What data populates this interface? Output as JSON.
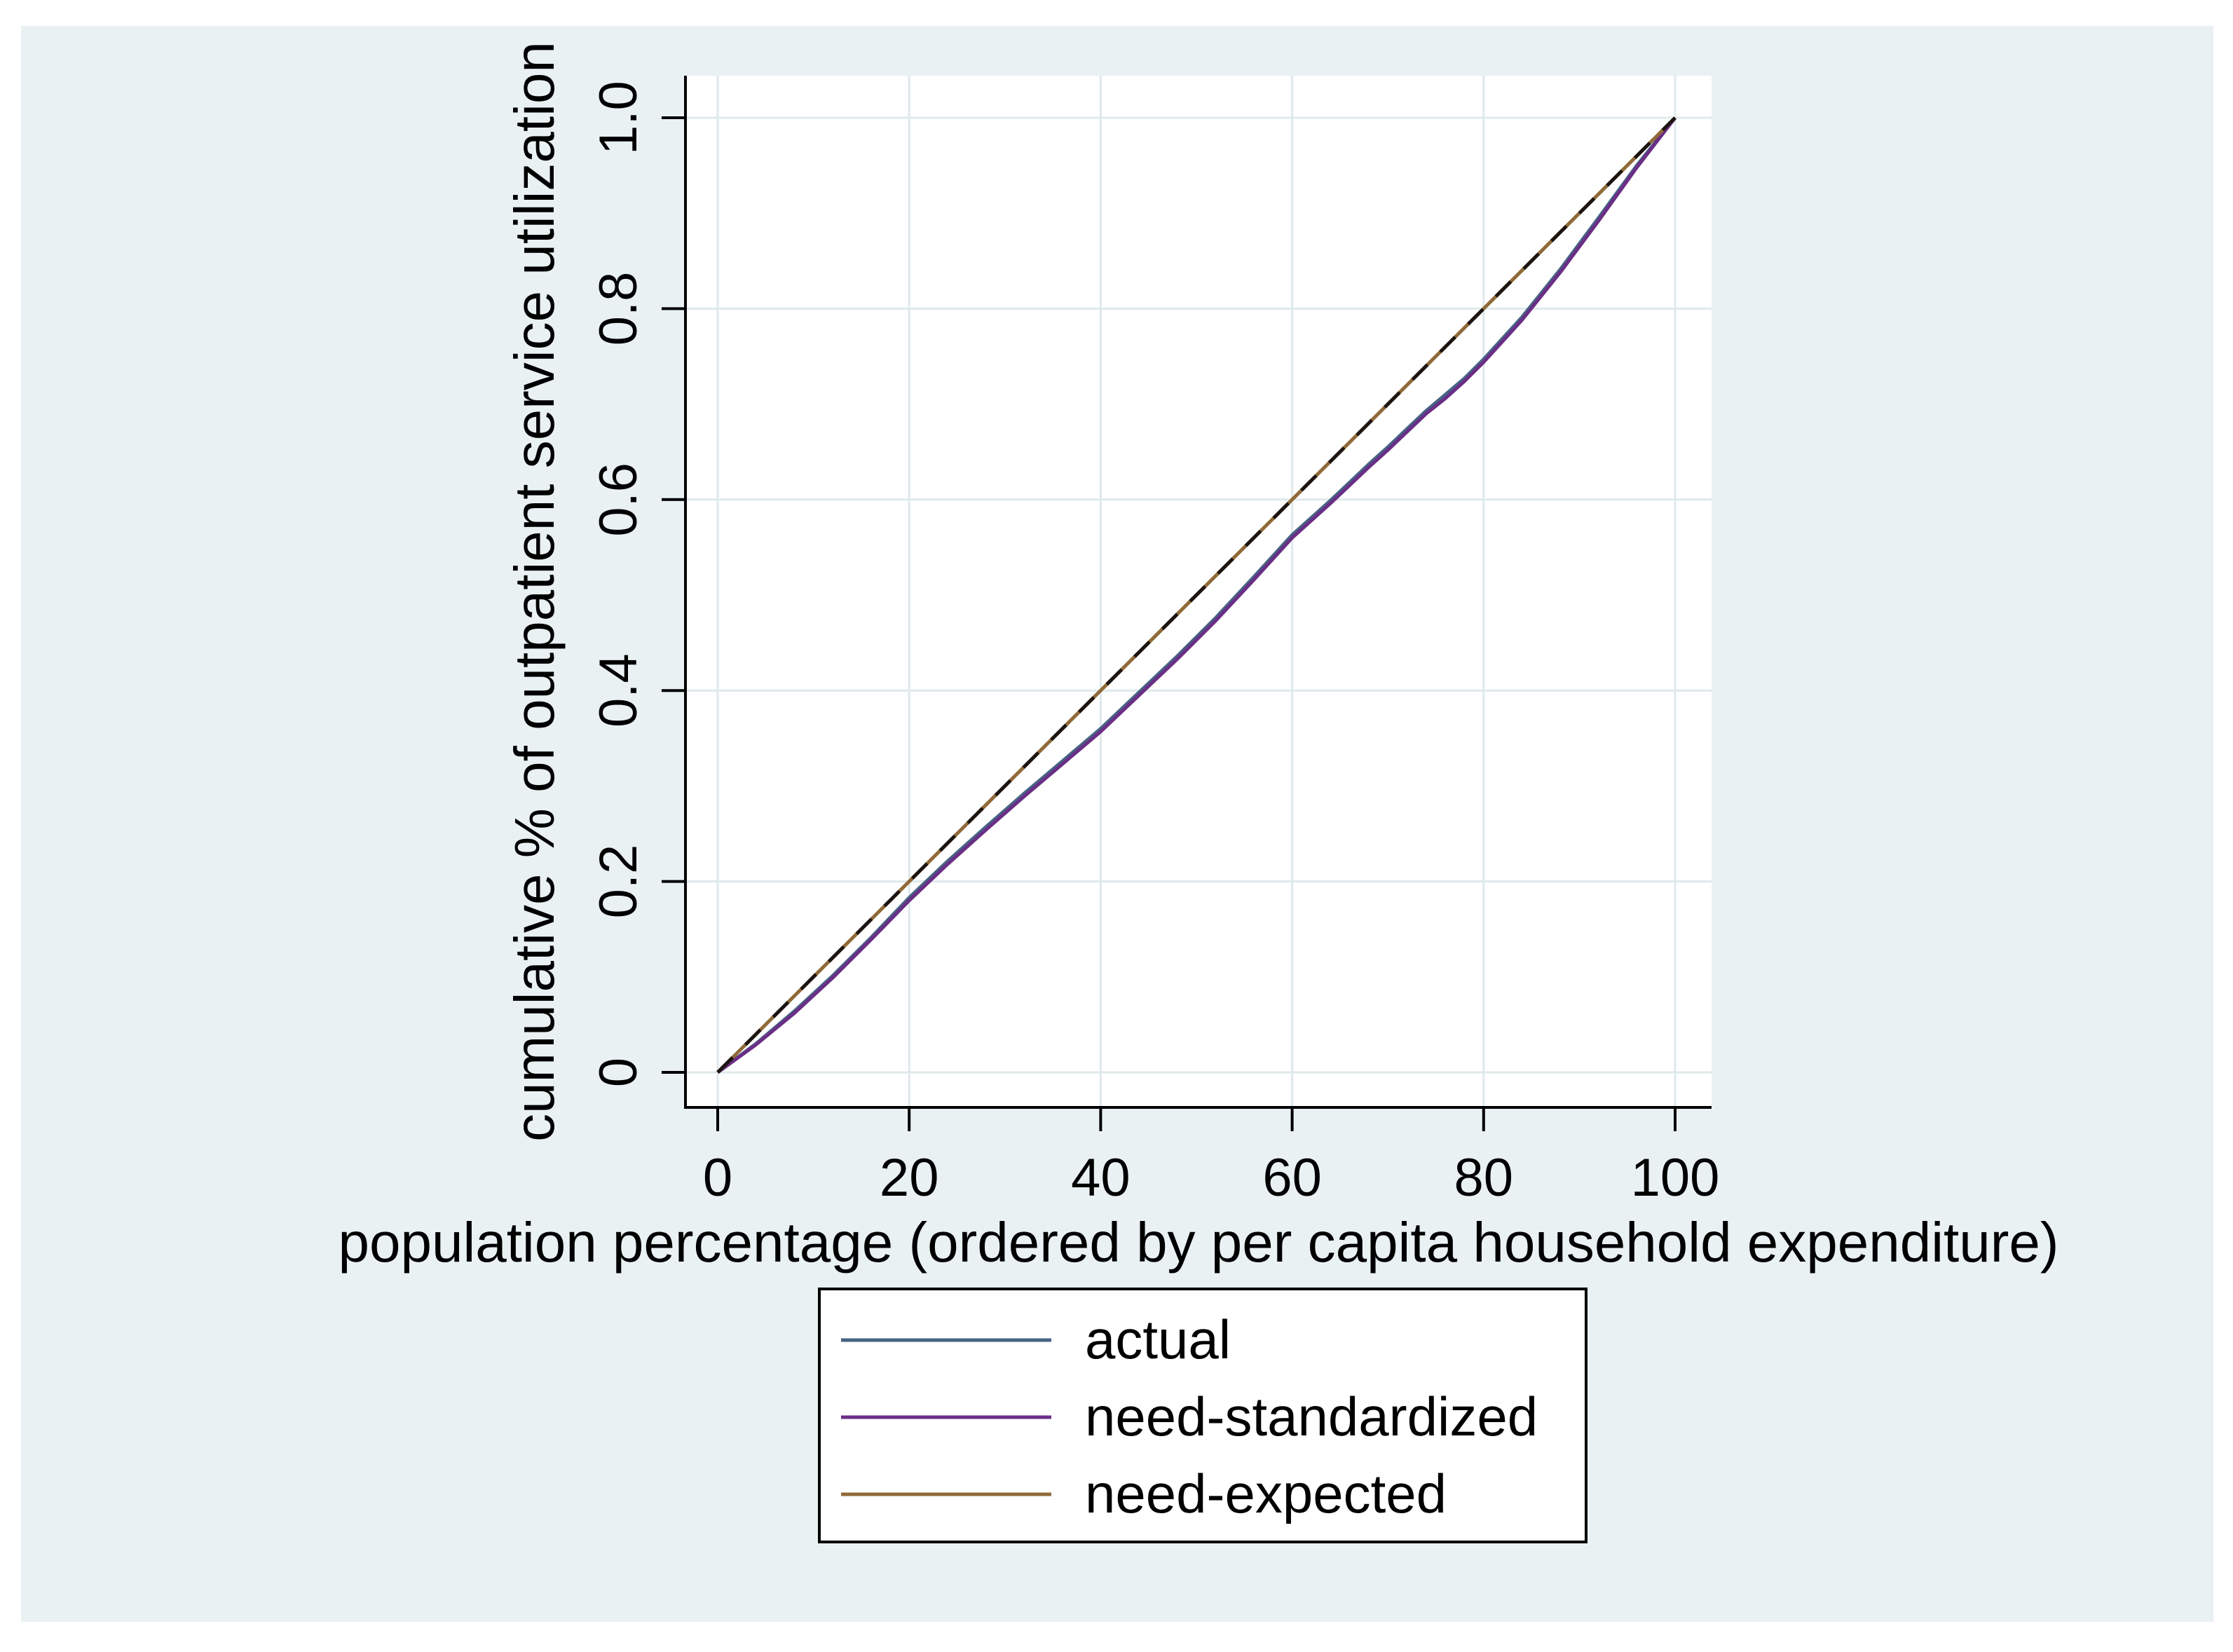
{
  "figure": {
    "page_background": "#ffffff",
    "graph_background": "#eaf1f3",
    "plot_background": "#ffffff",
    "grid_color": "#dfe9ec",
    "axis_color": "#000000"
  },
  "chart_data": {
    "type": "line",
    "title": "",
    "xlabel": "population percentage (ordered by per capita household expenditure)",
    "ylabel": "cumulative % of outpatient service utilization",
    "xlim": [
      0,
      100
    ],
    "ylim": [
      0,
      1
    ],
    "x_ticks": [
      0,
      20,
      40,
      60,
      80,
      100
    ],
    "x_tick_labels": [
      "0",
      "20",
      "40",
      "60",
      "80",
      "100"
    ],
    "y_ticks": [
      0,
      0.2,
      0.4,
      0.6,
      0.8,
      1.0
    ],
    "y_tick_labels": [
      "0",
      "0.2",
      "0.4",
      "0.6",
      "0.8",
      "1.0"
    ],
    "grid": true,
    "legend_position": "bottom-center",
    "series": [
      {
        "name": "actual",
        "color": "#456383",
        "style": "solid",
        "in_legend": true,
        "points": [
          [
            0,
            0
          ],
          [
            4,
            0.03
          ],
          [
            8,
            0.064
          ],
          [
            12,
            0.101
          ],
          [
            16,
            0.141
          ],
          [
            20,
            0.183
          ],
          [
            24,
            0.221
          ],
          [
            28,
            0.257
          ],
          [
            32,
            0.292
          ],
          [
            36,
            0.326
          ],
          [
            40,
            0.36
          ],
          [
            44,
            0.398
          ],
          [
            48,
            0.436
          ],
          [
            52,
            0.476
          ],
          [
            56,
            0.519
          ],
          [
            60,
            0.563
          ],
          [
            64,
            0.599
          ],
          [
            68,
            0.637
          ],
          [
            70,
            0.655
          ],
          [
            72,
            0.674
          ],
          [
            74,
            0.693
          ],
          [
            76,
            0.71
          ],
          [
            78,
            0.727
          ],
          [
            80,
            0.747
          ],
          [
            84,
            0.791
          ],
          [
            88,
            0.841
          ],
          [
            92,
            0.895
          ],
          [
            96,
            0.95
          ],
          [
            100,
            1
          ]
        ]
      },
      {
        "name": "need-standardized",
        "color": "#6b2e86",
        "style": "solid",
        "in_legend": true,
        "points": [
          [
            0,
            0
          ],
          [
            4,
            0.029
          ],
          [
            8,
            0.062
          ],
          [
            12,
            0.099
          ],
          [
            16,
            0.139
          ],
          [
            20,
            0.18
          ],
          [
            24,
            0.218
          ],
          [
            28,
            0.254
          ],
          [
            32,
            0.289
          ],
          [
            36,
            0.323
          ],
          [
            40,
            0.357
          ],
          [
            44,
            0.395
          ],
          [
            48,
            0.433
          ],
          [
            52,
            0.473
          ],
          [
            56,
            0.516
          ],
          [
            60,
            0.56
          ],
          [
            64,
            0.596
          ],
          [
            68,
            0.634
          ],
          [
            70,
            0.652
          ],
          [
            72,
            0.671
          ],
          [
            74,
            0.69
          ],
          [
            76,
            0.706
          ],
          [
            78,
            0.724
          ],
          [
            80,
            0.744
          ],
          [
            84,
            0.788
          ],
          [
            88,
            0.838
          ],
          [
            92,
            0.892
          ],
          [
            96,
            0.948
          ],
          [
            100,
            1
          ]
        ]
      },
      {
        "name": "need-expected",
        "color": "#8f6a38",
        "style": "solid",
        "in_legend": true,
        "points": [
          [
            0,
            0
          ],
          [
            100,
            1
          ]
        ]
      },
      {
        "name": "line-of-equality",
        "color": "#1c1410",
        "style": "dashed",
        "in_legend": false,
        "points": [
          [
            0,
            0
          ],
          [
            100,
            1
          ]
        ]
      }
    ],
    "legend_entries": [
      "actual",
      "need-standardized",
      "need-expected"
    ]
  }
}
